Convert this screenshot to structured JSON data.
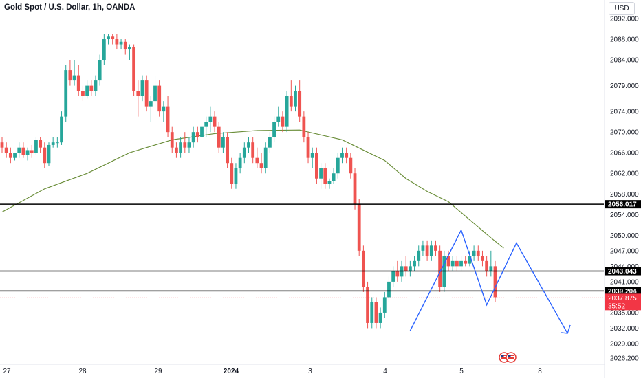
{
  "title": "Gold Spot / U.S. Dollar, 1h, OANDA",
  "currency_button": "USD",
  "colors": {
    "up": "#26a69a",
    "down": "#ef5350",
    "ma": "#6b8e3a",
    "pattern": "#2962ff",
    "hline": "#000000",
    "price_tag": "#f23645"
  },
  "chart_data": {
    "type": "candlestick",
    "y_ticks": [
      "2092.000",
      "2088.000",
      "2084.000",
      "2079.000",
      "2074.000",
      "2070.000",
      "2066.000",
      "2062.000",
      "2058.000",
      "2054.000",
      "2050.000",
      "2047.000",
      "2044.000",
      "2041.000",
      "2038.000",
      "2035.000",
      "2032.000",
      "2029.000",
      "2026.200"
    ],
    "x_ticks": [
      "27",
      "28",
      "29",
      "2024",
      "3",
      "4",
      "5",
      "8"
    ],
    "ylim": [
      2026.2,
      2093.5
    ],
    "horizontal_levels": [
      2056.017,
      2043.043,
      2039.204
    ],
    "last_price": "2037.875",
    "countdown": "35:52",
    "candles": [
      [
        2068,
        2069,
        2066,
        2067
      ],
      [
        2067,
        2068,
        2065,
        2066
      ],
      [
        2066,
        2067,
        2064,
        2065
      ],
      [
        2065,
        2066,
        2064.5,
        2066
      ],
      [
        2066,
        2068,
        2065,
        2067
      ],
      [
        2067,
        2068,
        2065,
        2065.5
      ],
      [
        2065.5,
        2067,
        2064.5,
        2066.5
      ],
      [
        2066.5,
        2067.5,
        2065,
        2066
      ],
      [
        2066,
        2069,
        2065.5,
        2068.5
      ],
      [
        2068.5,
        2069,
        2066,
        2067
      ],
      [
        2067,
        2068,
        2063,
        2064
      ],
      [
        2064,
        2068,
        2063.5,
        2067.5
      ],
      [
        2067.5,
        2069,
        2067,
        2068
      ],
      [
        2068,
        2069,
        2067,
        2068
      ],
      [
        2068,
        2074,
        2067.5,
        2073
      ],
      [
        2073,
        2083,
        2072,
        2082
      ],
      [
        2082,
        2084,
        2079,
        2080
      ],
      [
        2080,
        2084,
        2079,
        2081
      ],
      [
        2081,
        2083,
        2077,
        2078
      ],
      [
        2078,
        2079,
        2076,
        2077
      ],
      [
        2077,
        2080,
        2076.5,
        2079
      ],
      [
        2079,
        2080,
        2077,
        2078
      ],
      [
        2078,
        2081,
        2077,
        2080
      ],
      [
        2080,
        2085,
        2079,
        2084
      ],
      [
        2084,
        2089,
        2083,
        2088
      ],
      [
        2088,
        2089,
        2087,
        2088.5
      ],
      [
        2088.5,
        2089,
        2087,
        2088
      ],
      [
        2088,
        2089,
        2086,
        2087
      ],
      [
        2087,
        2088,
        2086,
        2087.5
      ],
      [
        2087.5,
        2088,
        2085,
        2086
      ],
      [
        2086,
        2087,
        2084,
        2086.5
      ],
      [
        2086.5,
        2087,
        2077,
        2078
      ],
      [
        2078,
        2080,
        2073,
        2077
      ],
      [
        2077,
        2081,
        2076,
        2080
      ],
      [
        2080,
        2081,
        2074,
        2075
      ],
      [
        2075,
        2077,
        2072,
        2076
      ],
      [
        2076,
        2081,
        2075,
        2079
      ],
      [
        2079,
        2080,
        2073,
        2074
      ],
      [
        2074,
        2076,
        2072,
        2075
      ],
      [
        2075,
        2077,
        2069,
        2070
      ],
      [
        2070,
        2071,
        2066,
        2067
      ],
      [
        2067,
        2068,
        2065,
        2066
      ],
      [
        2066,
        2069,
        2065,
        2068
      ],
      [
        2068,
        2070,
        2066,
        2067
      ],
      [
        2067,
        2069,
        2066,
        2068
      ],
      [
        2068,
        2071,
        2067,
        2070
      ],
      [
        2070,
        2071,
        2068,
        2069
      ],
      [
        2069,
        2072,
        2068,
        2071
      ],
      [
        2071,
        2073,
        2069,
        2072
      ],
      [
        2072,
        2075,
        2070,
        2073
      ],
      [
        2073,
        2074,
        2070,
        2071
      ],
      [
        2071,
        2072,
        2066,
        2067
      ],
      [
        2067,
        2070,
        2066,
        2069
      ],
      [
        2069,
        2070,
        2063,
        2064
      ],
      [
        2064,
        2065,
        2059,
        2060
      ],
      [
        2060,
        2064,
        2059,
        2063
      ],
      [
        2063,
        2066,
        2062,
        2065
      ],
      [
        2065,
        2068,
        2064,
        2067
      ],
      [
        2067,
        2069,
        2066,
        2068
      ],
      [
        2068,
        2069,
        2064,
        2065
      ],
      [
        2065,
        2067,
        2063,
        2064
      ],
      [
        2064,
        2066,
        2062,
        2063
      ],
      [
        2063,
        2068,
        2062,
        2067
      ],
      [
        2067,
        2070,
        2066,
        2069
      ],
      [
        2069,
        2073,
        2068,
        2072
      ],
      [
        2072,
        2075,
        2071,
        2073
      ],
      [
        2073,
        2074,
        2070,
        2071
      ],
      [
        2071,
        2078,
        2070,
        2077
      ],
      [
        2077,
        2080,
        2074,
        2075
      ],
      [
        2075,
        2079,
        2074,
        2078
      ],
      [
        2078,
        2080,
        2072,
        2073
      ],
      [
        2073,
        2074,
        2068,
        2069
      ],
      [
        2069,
        2070,
        2064,
        2065
      ],
      [
        2065,
        2067,
        2063,
        2066
      ],
      [
        2066,
        2067,
        2060,
        2061
      ],
      [
        2061,
        2064,
        2059,
        2063
      ],
      [
        2063,
        2064,
        2059,
        2060
      ],
      [
        2060,
        2061,
        2059,
        2060.5
      ],
      [
        2060.5,
        2063,
        2060,
        2062
      ],
      [
        2062,
        2066,
        2061,
        2065
      ],
      [
        2065,
        2067,
        2064,
        2066
      ],
      [
        2066,
        2067,
        2064,
        2065
      ],
      [
        2065,
        2066,
        2061,
        2062
      ],
      [
        2062,
        2063,
        2055,
        2056
      ],
      [
        2056,
        2057,
        2046,
        2047
      ],
      [
        2047,
        2048,
        2039,
        2040
      ],
      [
        2040,
        2041,
        2032,
        2033
      ],
      [
        2033,
        2038,
        2032,
        2037
      ],
      [
        2037,
        2038,
        2032,
        2033
      ],
      [
        2033,
        2036,
        2032,
        2035
      ],
      [
        2035,
        2039,
        2034,
        2038
      ],
      [
        2038,
        2042,
        2037,
        2041
      ],
      [
        2041,
        2044,
        2040,
        2043
      ],
      [
        2043,
        2045,
        2041,
        2042
      ],
      [
        2042,
        2045,
        2041,
        2044
      ],
      [
        2044,
        2046,
        2042,
        2043
      ],
      [
        2043,
        2045,
        2042,
        2044
      ],
      [
        2044,
        2046,
        2043,
        2045
      ],
      [
        2045,
        2048,
        2044,
        2047
      ],
      [
        2047,
        2049,
        2046,
        2048
      ],
      [
        2048,
        2049,
        2045,
        2046
      ],
      [
        2046,
        2049,
        2045,
        2048
      ],
      [
        2048,
        2049,
        2046,
        2047
      ],
      [
        2047,
        2048,
        2039,
        2040
      ],
      [
        2040,
        2047,
        2039,
        2046
      ],
      [
        2046,
        2047,
        2043,
        2044
      ],
      [
        2044,
        2046,
        2043,
        2045
      ],
      [
        2045,
        2046,
        2043,
        2044
      ],
      [
        2044,
        2046,
        2043,
        2045
      ],
      [
        2045,
        2046,
        2044,
        2044.5
      ],
      [
        2044.5,
        2047,
        2044,
        2046
      ],
      [
        2046,
        2048,
        2045,
        2047
      ],
      [
        2047,
        2048,
        2045,
        2046
      ],
      [
        2046,
        2047,
        2044,
        2045
      ],
      [
        2045,
        2046,
        2042,
        2043
      ],
      [
        2043,
        2047,
        2042,
        2044
      ],
      [
        2044,
        2045,
        2037,
        2038
      ]
    ],
    "ma_line": [
      [
        0,
        2054.5
      ],
      [
        10,
        2059
      ],
      [
        20,
        2062
      ],
      [
        30,
        2066
      ],
      [
        40,
        2068.5
      ],
      [
        50,
        2069.7
      ],
      [
        60,
        2070.3
      ],
      [
        70,
        2070.4
      ],
      [
        80,
        2068.5
      ],
      [
        85,
        2066.5
      ],
      [
        90,
        2064.5
      ],
      [
        95,
        2061
      ],
      [
        100,
        2058.5
      ],
      [
        105,
        2056.5
      ],
      [
        110,
        2053
      ],
      [
        115,
        2049.5
      ],
      [
        118,
        2047.5
      ]
    ],
    "pattern_line": [
      [
        96,
        2031.5
      ],
      [
        108,
        2051
      ],
      [
        114,
        2036.5
      ],
      [
        121,
        2048.5
      ],
      [
        133,
        2031
      ]
    ]
  }
}
